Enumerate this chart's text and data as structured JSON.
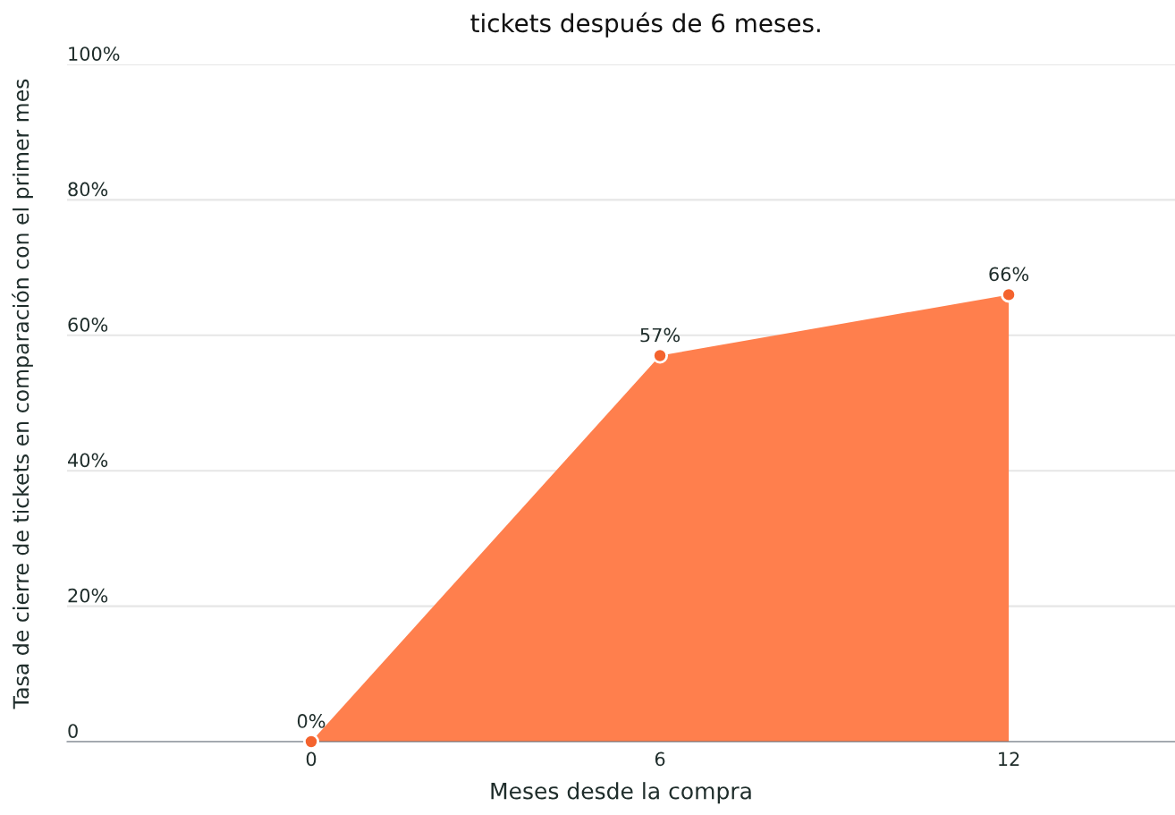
{
  "chart_data": {
    "type": "area",
    "title": "tickets después de 6 meses.",
    "xlabel": "Meses desde la compra",
    "ylabel": "Tasa de cierre de tickets en comparación con el primer mes",
    "x": [
      0,
      6,
      12
    ],
    "series": [
      {
        "color": "#ff7f4d",
        "values": [
          0,
          57,
          66
        ]
      },
      {
        "type": "scatter",
        "marker": "circle",
        "color": "#f4632e",
        "values": [
          0,
          57,
          66
        ],
        "value_labels": [
          "0%",
          "57%",
          "66%"
        ]
      }
    ],
    "xlim": [
      -4.2,
      14.86
    ],
    "xticks": [
      0,
      6,
      12
    ],
    "ylim": [
      0,
      100
    ],
    "yticks": [
      {
        "value": 0,
        "label": "0"
      },
      {
        "value": 20,
        "label": "20%"
      },
      {
        "value": 40,
        "label": "40%"
      },
      {
        "value": 60,
        "label": "60%"
      },
      {
        "value": 80,
        "label": "80%"
      },
      {
        "value": 100,
        "label": "100%"
      }
    ],
    "grid": "y"
  }
}
